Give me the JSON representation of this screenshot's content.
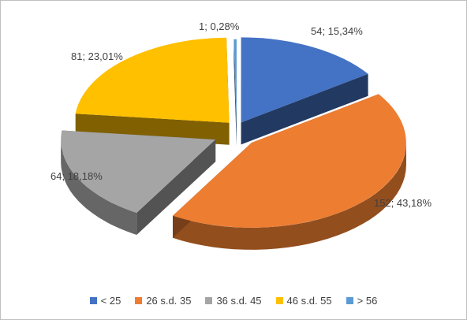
{
  "chart_data": {
    "type": "pie",
    "style": "3d-exploded",
    "title": "",
    "legend_position": "bottom",
    "slices": [
      {
        "label": "< 25",
        "value": 54,
        "percent": "15,34%",
        "data_label": "54; 15,34%",
        "color": "#4472c4"
      },
      {
        "label": "26 s.d. 35",
        "value": 152,
        "percent": "43,18%",
        "data_label": "152; 43,18%",
        "color": "#ed7d31"
      },
      {
        "label": "36 s.d. 45",
        "value": 64,
        "percent": "18,18%",
        "data_label": "64; 18,18%",
        "color": "#a5a5a5"
      },
      {
        "label": "46 s.d. 55",
        "value": 81,
        "percent": "23,01%",
        "data_label": "81; 23,01%",
        "color": "#ffc000"
      },
      {
        "label": "> 56",
        "value": 1,
        "percent": "0,28%",
        "data_label": "1; 0,28%",
        "color": "#5b9bd5"
      }
    ]
  }
}
